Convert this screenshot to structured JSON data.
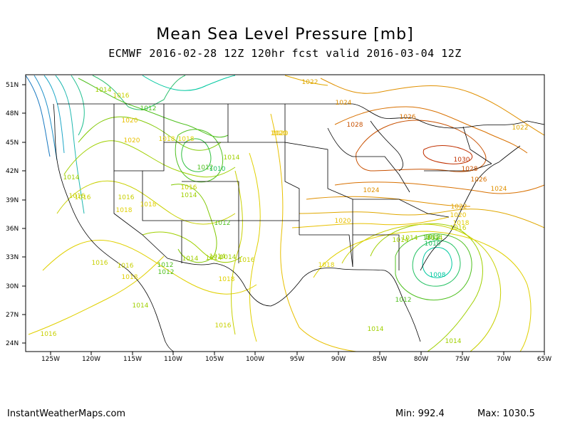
{
  "title": "Mean Sea Level Pressure [mb]",
  "subtitle": "ECMWF 2016-02-28 12Z 120hr fcst valid 2016-03-04 12Z",
  "footer": {
    "site": "InstantWeatherMaps.com",
    "min_label": "Min:  992.4",
    "max_label": "Max: 1030.5"
  },
  "axes": {
    "lat_labels": [
      "51N",
      "48N",
      "45N",
      "42N",
      "39N",
      "36N",
      "33N",
      "30N",
      "27N",
      "24N"
    ],
    "lon_labels": [
      "125W",
      "120W",
      "115W",
      "110W",
      "105W",
      "100W",
      "95W",
      "90W",
      "85W",
      "80W",
      "75W",
      "70W",
      "65W"
    ]
  },
  "colors": {
    "contour_1008": "#00c8a0",
    "contour_1010": "#20c060",
    "contour_1012": "#50c020",
    "contour_1014": "#a0d000",
    "contour_1016": "#c8d000",
    "contour_1018": "#e0d000",
    "contour_1020": "#e8c000",
    "contour_1022": "#e0a800",
    "contour_1024": "#e09000",
    "contour_1026": "#d87000",
    "contour_1028": "#c85000",
    "contour_1030": "#c03000",
    "contour_low_west": "#20a0c0"
  },
  "isobar_labels": [
    {
      "text": "1022",
      "color": "contour_1022"
    },
    {
      "text": "1024",
      "color": "contour_1024"
    },
    {
      "text": "1026",
      "color": "contour_1026"
    },
    {
      "text": "1028",
      "color": "contour_1028"
    },
    {
      "text": "1022",
      "color": "contour_1022"
    },
    {
      "text": "1020",
      "color": "contour_1020"
    },
    {
      "text": "1030",
      "color": "contour_1030"
    },
    {
      "text": "1028",
      "color": "contour_1028"
    },
    {
      "text": "1026",
      "color": "contour_1026"
    },
    {
      "text": "1024",
      "color": "contour_1024"
    },
    {
      "text": "1024",
      "color": "contour_1024"
    },
    {
      "text": "1022",
      "color": "contour_1022"
    },
    {
      "text": "1020",
      "color": "contour_1020"
    },
    {
      "text": "1018",
      "color": "contour_1018"
    },
    {
      "text": "1016",
      "color": "contour_1016"
    },
    {
      "text": "1020",
      "color": "contour_1020"
    },
    {
      "text": "1014",
      "color": "contour_1014"
    },
    {
      "text": "1012",
      "color": "contour_1012"
    },
    {
      "text": "1010",
      "color": "contour_1010"
    },
    {
      "text": "1008",
      "color": "contour_1008"
    },
    {
      "text": "1012",
      "color": "contour_1012"
    },
    {
      "text": "1014",
      "color": "contour_1014"
    },
    {
      "text": "1014",
      "color": "contour_1014"
    },
    {
      "text": "1018",
      "color": "contour_1018"
    },
    {
      "text": "1016",
      "color": "contour_1016"
    },
    {
      "text": "1018",
      "color": "contour_1018"
    },
    {
      "text": "1014",
      "color": "contour_1014"
    },
    {
      "text": "1016",
      "color": "contour_1016"
    },
    {
      "text": "1012",
      "color": "contour_1012"
    },
    {
      "text": "1014",
      "color": "contour_1014"
    },
    {
      "text": "1012",
      "color": "contour_1012"
    },
    {
      "text": "1014",
      "color": "contour_1014"
    },
    {
      "text": "1014",
      "color": "contour_1014"
    },
    {
      "text": "1012",
      "color": "contour_1012"
    },
    {
      "text": "1010",
      "color": "contour_1010"
    },
    {
      "text": "1016",
      "color": "contour_1016"
    },
    {
      "text": "1014",
      "color": "contour_1014"
    },
    {
      "text": "1016",
      "color": "contour_1016"
    },
    {
      "text": "1018",
      "color": "contour_1018"
    },
    {
      "text": "1020",
      "color": "contour_1020"
    },
    {
      "text": "1018",
      "color": "contour_1018"
    },
    {
      "text": "1016",
      "color": "contour_1016"
    },
    {
      "text": "1016",
      "color": "contour_1016"
    },
    {
      "text": "1016",
      "color": "contour_1016"
    },
    {
      "text": "1014",
      "color": "contour_1014"
    },
    {
      "text": "1018",
      "color": "contour_1018"
    },
    {
      "text": "1014",
      "color": "contour_1014"
    },
    {
      "text": "1016",
      "color": "contour_1016"
    },
    {
      "text": "1020",
      "color": "contour_1020"
    },
    {
      "text": "1012",
      "color": "contour_1012"
    },
    {
      "text": "1016",
      "color": "contour_1016"
    },
    {
      "text": "1018",
      "color": "contour_1018"
    },
    {
      "text": "1018",
      "color": "contour_1018"
    },
    {
      "text": "1016",
      "color": "contour_1016"
    },
    {
      "text": "1014",
      "color": "contour_1014"
    },
    {
      "text": "1012",
      "color": "contour_1012"
    },
    {
      "text": "1014",
      "color": "contour_1014"
    },
    {
      "text": "1014",
      "color": "contour_1014"
    },
    {
      "text": "1014",
      "color": "contour_1014"
    },
    {
      "text": "1012",
      "color": "contour_1012"
    },
    {
      "text": "1020",
      "color": "contour_1020"
    }
  ]
}
